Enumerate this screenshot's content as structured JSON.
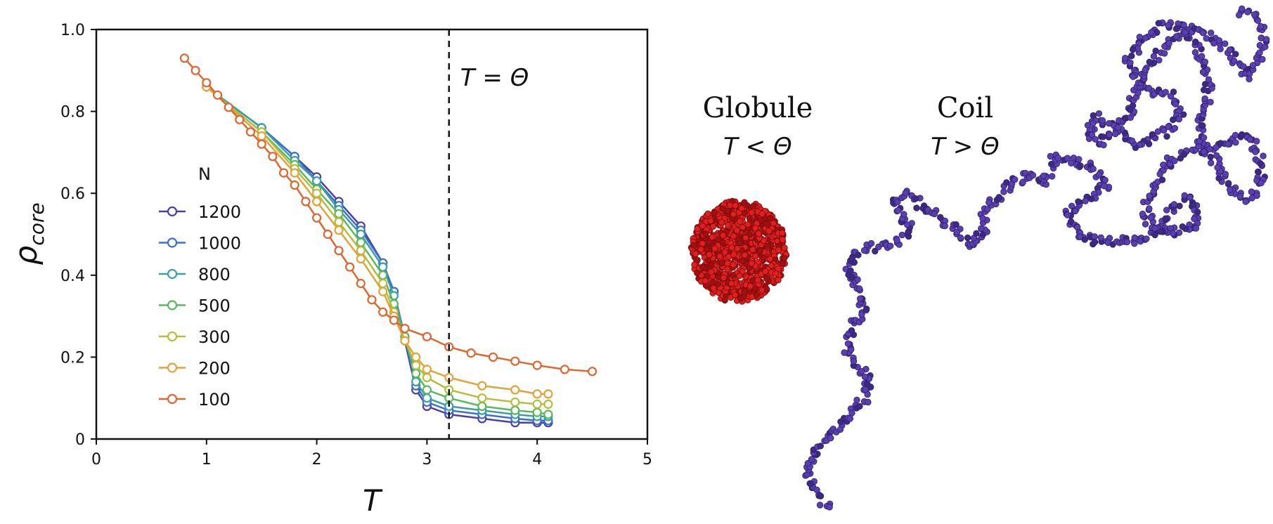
{
  "chart_data": {
    "type": "line",
    "xlabel": "T",
    "ylabel": "ρ",
    "ylabel_subscript": "core",
    "xlim": [
      0,
      5
    ],
    "ylim": [
      0,
      1.0
    ],
    "xticks": [
      "0",
      "1",
      "2",
      "3",
      "4",
      "5"
    ],
    "yticks": [
      "0",
      "0.2",
      "0.4",
      "0.6",
      "0.8",
      "1.0"
    ],
    "grid": false,
    "legend_title": "N",
    "legend_placement": "center-left",
    "reference_line": {
      "x": 3.2,
      "label": "T = Θ",
      "style": "dashed"
    },
    "series": [
      {
        "name": "1200",
        "color": "#4a3fa8",
        "x": [
          1.0,
          1.5,
          1.8,
          2.0,
          2.2,
          2.4,
          2.6,
          2.7,
          2.8,
          2.9,
          3.0,
          3.2,
          3.5,
          3.8,
          4.0,
          4.1
        ],
        "y": [
          0.86,
          0.76,
          0.69,
          0.64,
          0.58,
          0.52,
          0.43,
          0.36,
          0.24,
          0.12,
          0.08,
          0.06,
          0.05,
          0.04,
          0.04,
          0.04
        ]
      },
      {
        "name": "1000",
        "color": "#3b6fd0",
        "x": [
          1.0,
          1.5,
          1.8,
          2.0,
          2.2,
          2.4,
          2.6,
          2.7,
          2.8,
          2.9,
          3.0,
          3.2,
          3.5,
          3.8,
          4.0,
          4.1
        ],
        "y": [
          0.86,
          0.76,
          0.69,
          0.63,
          0.57,
          0.51,
          0.43,
          0.36,
          0.25,
          0.13,
          0.09,
          0.07,
          0.06,
          0.05,
          0.045,
          0.045
        ]
      },
      {
        "name": "800",
        "color": "#3aa0a5",
        "x": [
          1.0,
          1.5,
          1.8,
          2.0,
          2.2,
          2.4,
          2.6,
          2.7,
          2.8,
          2.9,
          3.0,
          3.2,
          3.5,
          3.8,
          4.0,
          4.1
        ],
        "y": [
          0.86,
          0.76,
          0.68,
          0.63,
          0.56,
          0.5,
          0.42,
          0.35,
          0.25,
          0.14,
          0.1,
          0.08,
          0.07,
          0.06,
          0.055,
          0.055
        ]
      },
      {
        "name": "500",
        "color": "#5cb85c",
        "x": [
          1.0,
          1.5,
          1.8,
          2.0,
          2.2,
          2.4,
          2.6,
          2.7,
          2.8,
          2.9,
          3.0,
          3.2,
          3.5,
          3.8,
          4.0,
          4.1
        ],
        "y": [
          0.86,
          0.75,
          0.67,
          0.61,
          0.55,
          0.48,
          0.4,
          0.33,
          0.25,
          0.16,
          0.12,
          0.1,
          0.08,
          0.07,
          0.065,
          0.06
        ]
      },
      {
        "name": "300",
        "color": "#b5bd3c",
        "x": [
          1.0,
          1.5,
          1.8,
          2.0,
          2.2,
          2.4,
          2.6,
          2.7,
          2.8,
          2.9,
          3.0,
          3.2,
          3.5,
          3.8,
          4.0,
          4.1
        ],
        "y": [
          0.86,
          0.75,
          0.66,
          0.6,
          0.53,
          0.46,
          0.38,
          0.31,
          0.24,
          0.18,
          0.15,
          0.12,
          0.1,
          0.09,
          0.085,
          0.085
        ]
      },
      {
        "name": "200",
        "color": "#e1a239",
        "x": [
          1.0,
          1.5,
          1.8,
          2.0,
          2.2,
          2.4,
          2.6,
          2.7,
          2.8,
          2.9,
          3.0,
          3.2,
          3.5,
          3.8,
          4.0,
          4.1
        ],
        "y": [
          0.86,
          0.74,
          0.65,
          0.58,
          0.51,
          0.44,
          0.36,
          0.3,
          0.24,
          0.2,
          0.17,
          0.15,
          0.13,
          0.12,
          0.11,
          0.11
        ]
      },
      {
        "name": "100",
        "color": "#de6630",
        "x": [
          0.8,
          0.9,
          1.0,
          1.1,
          1.2,
          1.3,
          1.4,
          1.5,
          1.6,
          1.7,
          1.8,
          1.9,
          2.0,
          2.1,
          2.2,
          2.3,
          2.4,
          2.5,
          2.6,
          2.7,
          2.8,
          3.0,
          3.2,
          3.4,
          3.6,
          3.8,
          4.0,
          4.25,
          4.5
        ],
        "y": [
          0.93,
          0.9,
          0.87,
          0.84,
          0.81,
          0.78,
          0.75,
          0.72,
          0.69,
          0.65,
          0.62,
          0.58,
          0.54,
          0.5,
          0.46,
          0.42,
          0.38,
          0.34,
          0.31,
          0.29,
          0.27,
          0.25,
          0.225,
          0.21,
          0.2,
          0.19,
          0.18,
          0.17,
          0.165
        ]
      }
    ]
  },
  "illustration": {
    "globule": {
      "name": "Globule",
      "condition": "T < Θ",
      "color": "#e02020"
    },
    "coil": {
      "name": "Coil",
      "condition": "T > Θ",
      "color": "#5a3fb0"
    }
  }
}
